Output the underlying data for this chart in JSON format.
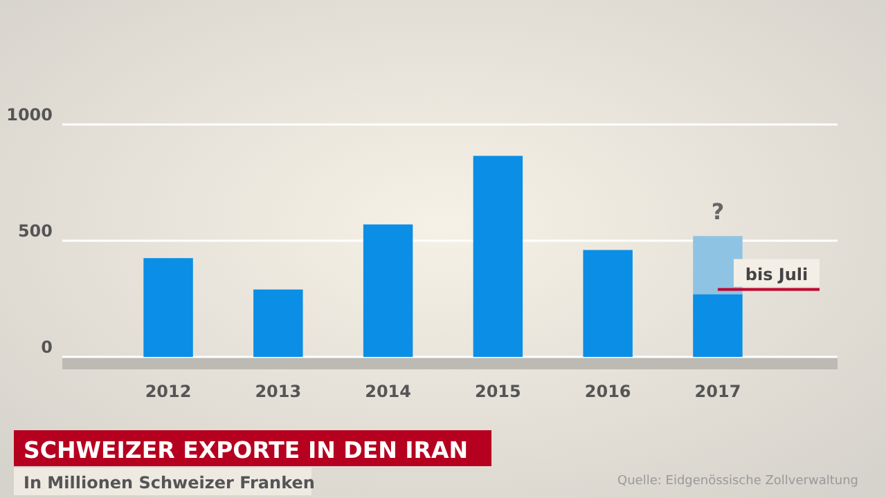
{
  "chart_data": {
    "type": "bar",
    "title": "SCHWEIZER EXPORTE IN DEN IRAN",
    "subtitle": "In Millionen Schweizer Franken",
    "categories": [
      "2012",
      "2013",
      "2014",
      "2015",
      "2016",
      "2017"
    ],
    "stacked": true,
    "series": [
      {
        "color": "#0a8ee6",
        "values": [
          425,
          290,
          570,
          865,
          460,
          270
        ]
      },
      {
        "color": "#8fc3e3",
        "values": [
          null,
          null,
          null,
          null,
          null,
          250
        ]
      }
    ],
    "ylim": [
      0,
      1000
    ],
    "yticks": [
      0,
      500,
      1000
    ],
    "grid": "y",
    "ref_lines": [
      {
        "axis": "y",
        "value": 290,
        "label": "bis Juli",
        "color": "#c0002a"
      }
    ],
    "annotations": [
      {
        "text": "?",
        "x": "2017",
        "y": 520
      },
      "Quelle: Eidgenössische Zollverwaltung"
    ]
  }
}
